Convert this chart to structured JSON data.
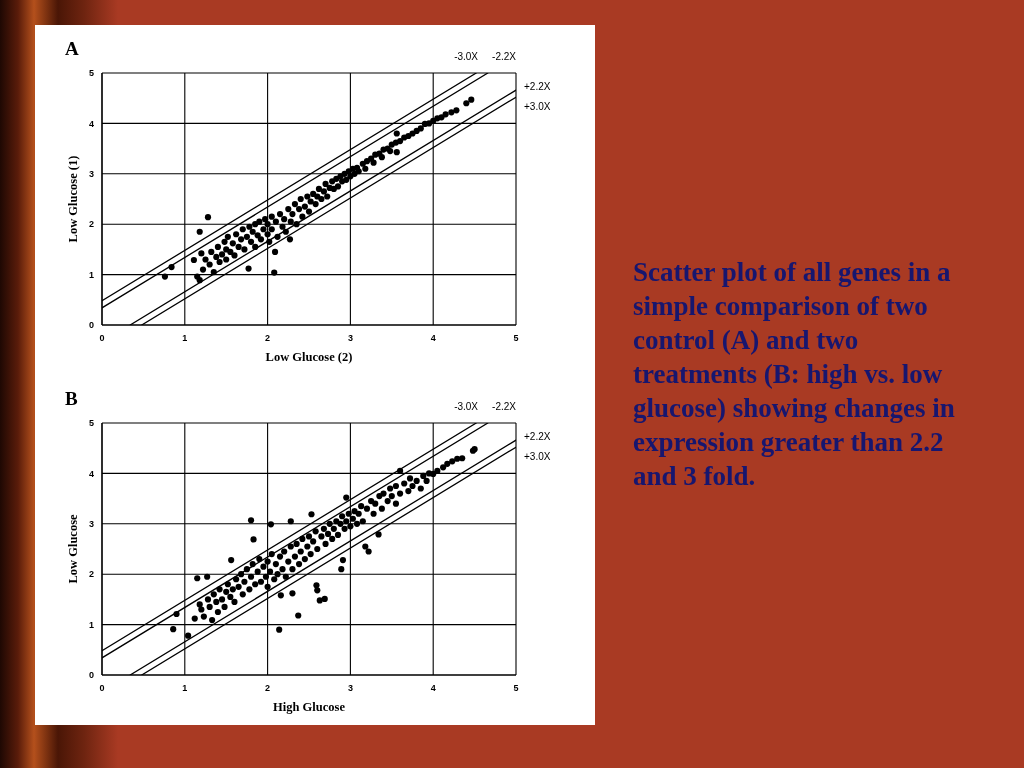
{
  "chart_data": [
    {
      "type": "scatter",
      "title": "A",
      "xlabel": "Low Glucose (2)",
      "ylabel": "Low Glucose (1)",
      "xlim": [
        0,
        5
      ],
      "ylim": [
        0,
        5
      ],
      "xticks": [
        0,
        1,
        2,
        3,
        4,
        5
      ],
      "yticks": [
        0,
        1,
        2,
        3,
        4,
        5
      ],
      "grid": true,
      "marker": "circle",
      "series": [
        {
          "type": "scatter",
          "color": "#000000",
          "x": [
            0.76,
            0.84,
            1.11,
            1.15,
            1.18,
            1.18,
            1.28,
            1.2,
            1.22,
            1.25,
            1.3,
            1.32,
            1.35,
            1.38,
            1.4,
            1.42,
            1.45,
            1.48,
            1.5,
            1.5,
            1.52,
            1.55,
            1.58,
            1.6,
            1.62,
            1.65,
            1.68,
            1.7,
            1.72,
            1.75,
            1.77,
            1.78,
            1.8,
            1.82,
            1.85,
            1.85,
            1.88,
            1.9,
            1.92,
            1.95,
            1.97,
            2,
            2,
            2.02,
            2.05,
            2.05,
            2.08,
            2.09,
            2.1,
            2.12,
            2.15,
            2.18,
            2.2,
            2.22,
            2.25,
            2.27,
            2.28,
            2.3,
            2.33,
            2.35,
            2.38,
            2.4,
            2.42,
            2.45,
            2.48,
            2.5,
            2.52,
            2.55,
            2.58,
            2.6,
            2.62,
            2.65,
            2.68,
            2.7,
            2.72,
            2.75,
            2.78,
            2.8,
            2.83,
            2.85,
            2.88,
            2.9,
            2.93,
            2.95,
            2.98,
            3,
            3.03,
            3.05,
            3.08,
            3.1,
            3.15,
            3.18,
            3.2,
            3.25,
            3.28,
            3.3,
            3.35,
            3.38,
            3.4,
            3.45,
            3.48,
            3.5,
            3.55,
            3.56,
            3.56,
            3.6,
            3.65,
            3.7,
            3.75,
            3.8,
            3.85,
            3.9,
            3.95,
            4,
            4.05,
            4.1,
            4.15,
            4.22,
            4.28,
            4.4,
            4.46
          ],
          "values": [
            0.96,
            1.15,
            1.29,
            0.96,
            0.89,
            1.85,
            2.14,
            1.42,
            1.1,
            1.3,
            1.2,
            1.45,
            1.05,
            1.35,
            1.55,
            1.25,
            1.4,
            1.65,
            1.3,
            1.5,
            1.75,
            1.45,
            1.62,
            1.38,
            1.8,
            1.55,
            1.7,
            1.9,
            1.5,
            1.75,
            1.12,
            1.95,
            1.65,
            1.85,
            2,
            1.55,
            1.78,
            2.05,
            1.7,
            1.9,
            2.1,
            1.8,
            2,
            1.65,
            2.15,
            1.9,
            1.04,
            1.45,
            2.05,
            1.75,
            2.2,
            1.95,
            2.1,
            1.85,
            2.3,
            1.7,
            2.05,
            2.2,
            2.4,
            2,
            2.3,
            2.5,
            2.15,
            2.35,
            2.55,
            2.25,
            2.45,
            2.6,
            2.4,
            2.55,
            2.7,
            2.5,
            2.65,
            2.8,
            2.55,
            2.72,
            2.85,
            2.7,
            2.9,
            2.75,
            2.95,
            2.85,
            3,
            2.88,
            3.05,
            2.95,
            3.1,
            3,
            3.12,
            3.05,
            3.2,
            3.1,
            3.25,
            3.3,
            3.22,
            3.38,
            3.4,
            3.33,
            3.48,
            3.5,
            3.45,
            3.58,
            3.62,
            3.8,
            3.43,
            3.65,
            3.72,
            3.75,
            3.8,
            3.85,
            3.9,
            3.99,
            4,
            4.05,
            4.1,
            4.12,
            4.18,
            4.22,
            4.26,
            4.4,
            4.47
          ]
        },
        {
          "type": "line",
          "name": "-3.0X",
          "color": "#000000",
          "marker": "none",
          "x": [
            0,
            4.52
          ],
          "values": [
            0.48,
            5
          ]
        },
        {
          "type": "line",
          "name": "-2.2X",
          "color": "#000000",
          "marker": "none",
          "x": [
            0,
            4.66
          ],
          "values": [
            0.34,
            5
          ]
        },
        {
          "type": "line",
          "name": "+2.2X",
          "color": "#000000",
          "marker": "none",
          "x": [
            0.34,
            5
          ],
          "values": [
            0,
            4.66
          ]
        },
        {
          "type": "line",
          "name": "+3.0X",
          "color": "#000000",
          "marker": "none",
          "x": [
            0.48,
            5
          ],
          "values": [
            0,
            4.52
          ]
        }
      ]
    },
    {
      "type": "scatter",
      "title": "B",
      "xlabel": "High Glucose",
      "ylabel": "Low Glucose",
      "xlim": [
        0,
        5
      ],
      "ylim": [
        0,
        5
      ],
      "xticks": [
        0,
        1,
        2,
        3,
        4,
        5
      ],
      "yticks": [
        0,
        1,
        2,
        3,
        4,
        5
      ],
      "grid": true,
      "marker": "circle",
      "series": [
        {
          "type": "scatter",
          "color": "#000000",
          "x": [
            0.86,
            0.9,
            1.04,
            1.12,
            1.15,
            1.18,
            1.2,
            1.23,
            1.27,
            1.28,
            1.3,
            1.33,
            1.35,
            1.38,
            1.4,
            1.42,
            1.45,
            1.48,
            1.5,
            1.52,
            1.55,
            1.56,
            1.58,
            1.6,
            1.62,
            1.65,
            1.68,
            1.7,
            1.72,
            1.75,
            1.78,
            1.8,
            1.8,
            1.82,
            1.83,
            1.85,
            1.88,
            1.9,
            1.92,
            1.95,
            1.98,
            2,
            2,
            2.03,
            2.04,
            2.05,
            2.08,
            2.1,
            2.12,
            2.14,
            2.15,
            2.16,
            2.18,
            2.2,
            2.22,
            2.25,
            2.28,
            2.28,
            2.3,
            2.3,
            2.33,
            2.35,
            2.37,
            2.38,
            2.4,
            2.42,
            2.45,
            2.48,
            2.5,
            2.52,
            2.53,
            2.55,
            2.58,
            2.59,
            2.6,
            2.6,
            2.63,
            2.65,
            2.68,
            2.69,
            2.7,
            2.73,
            2.75,
            2.78,
            2.8,
            2.83,
            2.85,
            2.88,
            2.89,
            2.9,
            2.91,
            2.93,
            2.95,
            2.95,
            2.98,
            3,
            3.03,
            3.05,
            3.08,
            3.1,
            3.13,
            3.15,
            3.18,
            3.2,
            3.22,
            3.25,
            3.28,
            3.3,
            3.34,
            3.35,
            3.38,
            3.4,
            3.45,
            3.48,
            3.5,
            3.55,
            3.55,
            3.6,
            3.6,
            3.65,
            3.7,
            3.72,
            3.75,
            3.8,
            3.85,
            3.88,
            3.92,
            3.95,
            4,
            4.05,
            4.12,
            4.17,
            4.23,
            4.29,
            4.35,
            4.48,
            4.5
          ],
          "values": [
            0.91,
            1.21,
            0.78,
            1.12,
            1.92,
            1.4,
            1.3,
            1.16,
            1.95,
            1.5,
            1.35,
            1.09,
            1.6,
            1.45,
            1.25,
            1.7,
            1.5,
            1.35,
            1.65,
            1.8,
            1.55,
            2.28,
            1.7,
            1.45,
            1.9,
            1.75,
            2,
            1.6,
            1.85,
            2.1,
            1.7,
            3.07,
            1.95,
            2.2,
            2.69,
            1.8,
            2.05,
            2.3,
            1.85,
            2.15,
            1.95,
            2.25,
            1.75,
            2.05,
            2.99,
            2.4,
            1.9,
            2.2,
            2,
            0.9,
            2.35,
            1.58,
            2.1,
            2.45,
            1.95,
            2.25,
            3.05,
            2.55,
            1.62,
            2.1,
            2.35,
            2.6,
            1.18,
            2.2,
            2.45,
            2.7,
            2.3,
            2.55,
            2.75,
            2.4,
            3.19,
            2.65,
            2.85,
            1.78,
            1.68,
            2.5,
            1.48,
            2.75,
            2.9,
            1.51,
            2.6,
            2.8,
            3,
            2.7,
            2.9,
            3.05,
            2.78,
            3,
            2.1,
            3.15,
            2.28,
            2.9,
            3.52,
            3.05,
            3.2,
            2.95,
            3.1,
            3.25,
            3,
            3.2,
            3.35,
            3.05,
            2.55,
            3.3,
            2.45,
            3.45,
            3.2,
            3.4,
            2.79,
            3.55,
            3.3,
            3.6,
            3.45,
            3.7,
            3.55,
            3.4,
            3.75,
            4.05,
            3.6,
            3.8,
            3.65,
            3.9,
            3.75,
            3.85,
            3.7,
            3.95,
            3.85,
            4,
            3.99,
            4.05,
            4.12,
            4.19,
            4.24,
            4.29,
            4.3,
            4.45,
            4.48
          ]
        },
        {
          "type": "line",
          "name": "-3.0X",
          "color": "#000000",
          "marker": "none",
          "x": [
            0,
            4.52
          ],
          "values": [
            0.48,
            5
          ]
        },
        {
          "type": "line",
          "name": "-2.2X",
          "color": "#000000",
          "marker": "none",
          "x": [
            0,
            4.66
          ],
          "values": [
            0.34,
            5
          ]
        },
        {
          "type": "line",
          "name": "+2.2X",
          "color": "#000000",
          "marker": "none",
          "x": [
            0.34,
            5
          ],
          "values": [
            0,
            4.66
          ]
        },
        {
          "type": "line",
          "name": "+3.0X",
          "color": "#000000",
          "marker": "none",
          "x": [
            0.48,
            5
          ],
          "values": [
            0,
            4.52
          ]
        }
      ]
    },
    {
      "type": "other",
      "annotations": [
        "Scatter plot of all genes in a simple comparison of two control (A) and two treatments (B: high vs. low glucose) showing changes in expression greater than 2.2 and 3 fold."
      ]
    }
  ]
}
